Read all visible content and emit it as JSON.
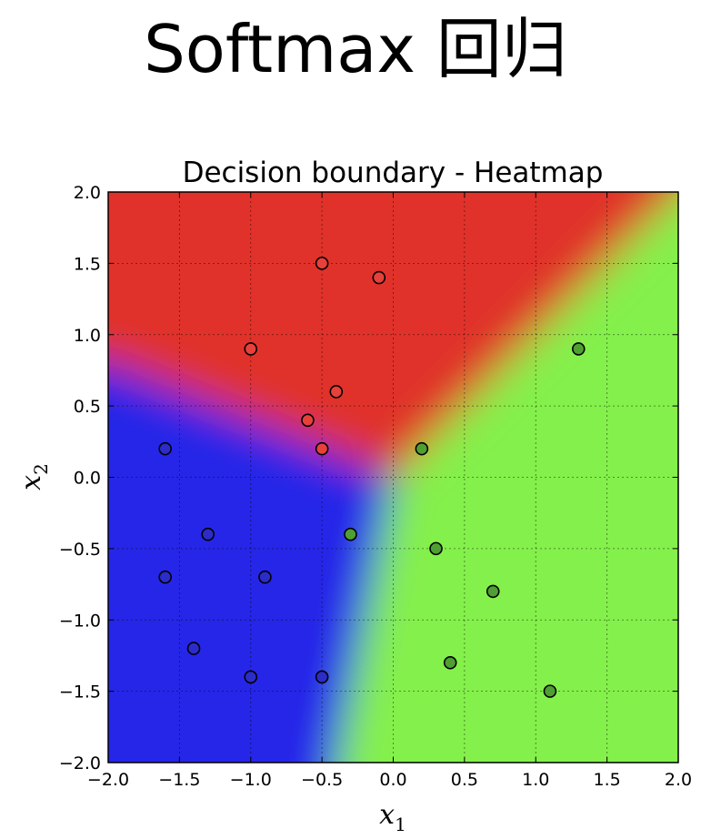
{
  "page": {
    "title": "Softmax 回归"
  },
  "chart_data": {
    "type": "heatmap",
    "title": "Decision boundary - Heatmap",
    "xlabel": "x",
    "xlabel_sub": "1",
    "ylabel": "x",
    "ylabel_sub": "2",
    "xlim": [
      -2.0,
      2.0
    ],
    "ylim": [
      -2.0,
      2.0
    ],
    "xticks": [
      -2.0,
      -1.5,
      -1.0,
      -0.5,
      0.0,
      0.5,
      1.0,
      1.5,
      2.0
    ],
    "yticks": [
      -2.0,
      -1.5,
      -1.0,
      -0.5,
      0.0,
      0.5,
      1.0,
      1.5,
      2.0
    ],
    "xtick_labels": [
      "−2.0",
      "−1.5",
      "−1.0",
      "−0.5",
      "0.0",
      "0.5",
      "1.0",
      "1.5",
      "2.0"
    ],
    "ytick_labels": [
      "−2.0",
      "−1.5",
      "−1.0",
      "−0.5",
      "0.0",
      "0.5",
      "1.0",
      "1.5",
      "2.0"
    ],
    "grid": true,
    "grid_style": "dotted",
    "class_colors": {
      "red": "#e0302a",
      "green": "#84f04b",
      "blue": "#2525e8"
    },
    "point_colors": {
      "red": "#e8403a",
      "green": "#4f9f33",
      "blue": "#2c2cc8"
    },
    "decision_regions": {
      "red_green": {
        "x": [
          0.0,
          2.0
        ],
        "y": [
          0.0,
          2.0
        ]
      },
      "red_blue": {
        "x": [
          0.0,
          -2.0
        ],
        "y": [
          0.0,
          0.8
        ]
      },
      "green_blue": {
        "x": [
          0.0,
          -0.4
        ],
        "y": [
          0.0,
          -2.0
        ]
      }
    },
    "series": [
      {
        "class": "red",
        "x": [
          -0.5,
          -0.1,
          -1.0,
          -0.4,
          -0.6,
          -0.5
        ],
        "y": [
          1.5,
          1.4,
          0.9,
          0.6,
          0.4,
          0.2
        ]
      },
      {
        "class": "green",
        "x": [
          1.3,
          0.2,
          -0.3,
          0.3,
          0.7,
          0.4,
          1.1
        ],
        "y": [
          0.9,
          0.2,
          -0.4,
          -0.5,
          -0.8,
          -1.3,
          -1.5
        ]
      },
      {
        "class": "blue",
        "x": [
          -1.6,
          -1.3,
          -1.6,
          -0.9,
          -1.4,
          -1.0,
          -0.5
        ],
        "y": [
          0.2,
          -0.4,
          -0.7,
          -0.7,
          -1.2,
          -1.4,
          -1.4
        ]
      }
    ]
  }
}
